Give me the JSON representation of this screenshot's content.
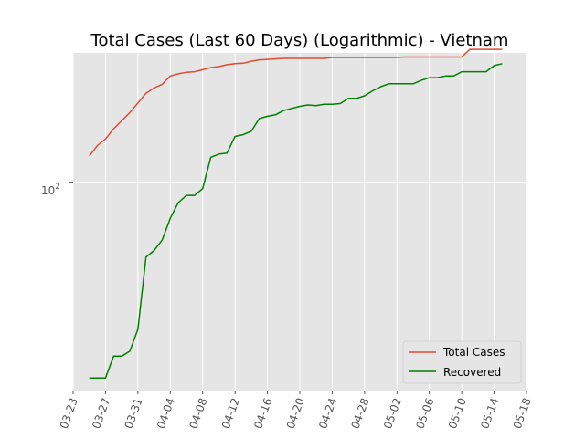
{
  "chart_data": {
    "type": "line",
    "title": "Total Cases (Last 60 Days) (Logarithmic) - Vietnam",
    "yscale": "log",
    "grid": true,
    "legend_position": "bottom-right",
    "x_ticks": [
      "03-23",
      "03-27",
      "03-31",
      "04-04",
      "04-08",
      "04-12",
      "04-16",
      "04-20",
      "04-24",
      "04-28",
      "05-02",
      "05-06",
      "05-10",
      "05-14",
      "05-18"
    ],
    "x_tick_dates": [
      "2020-03-23",
      "2020-03-27",
      "2020-03-31",
      "2020-04-04",
      "2020-04-08",
      "2020-04-12",
      "2020-04-16",
      "2020-04-20",
      "2020-04-24",
      "2020-04-28",
      "2020-05-02",
      "2020-05-06",
      "2020-05-10",
      "2020-05-14",
      "2020-05-18"
    ],
    "xlim": [
      "2020-03-23",
      "2020-05-18"
    ],
    "y_tick_label": "10",
    "y_tick_exp": "2",
    "y_tick_value": 100,
    "ylim": [
      19,
      280
    ],
    "x": [
      "2020-03-25",
      "2020-03-26",
      "2020-03-27",
      "2020-03-28",
      "2020-03-29",
      "2020-03-30",
      "2020-03-31",
      "2020-04-01",
      "2020-04-02",
      "2020-04-03",
      "2020-04-04",
      "2020-04-05",
      "2020-04-06",
      "2020-04-07",
      "2020-04-08",
      "2020-04-09",
      "2020-04-10",
      "2020-04-11",
      "2020-04-12",
      "2020-04-13",
      "2020-04-14",
      "2020-04-15",
      "2020-04-16",
      "2020-04-17",
      "2020-04-18",
      "2020-04-19",
      "2020-04-20",
      "2020-04-21",
      "2020-04-22",
      "2020-04-23",
      "2020-04-24",
      "2020-04-25",
      "2020-04-26",
      "2020-04-27",
      "2020-04-28",
      "2020-04-29",
      "2020-04-30",
      "2020-05-01",
      "2020-05-02",
      "2020-05-03",
      "2020-05-04",
      "2020-05-05",
      "2020-05-06",
      "2020-05-07",
      "2020-05-08",
      "2020-05-09",
      "2020-05-10",
      "2020-05-11",
      "2020-05-12",
      "2020-05-13",
      "2020-05-14",
      "2020-05-15"
    ],
    "series": [
      {
        "name": "Total Cases",
        "color": "#E24A33",
        "values": [
          123,
          134,
          141,
          153,
          163,
          174,
          188,
          203,
          212,
          218,
          233,
          237,
          240,
          241,
          245,
          249,
          251,
          255,
          257,
          258,
          262,
          265,
          266,
          267,
          268,
          268,
          268,
          268,
          268,
          268,
          270,
          270,
          270,
          270,
          270,
          270,
          270,
          270,
          270,
          271,
          271,
          271,
          271,
          271,
          271,
          271,
          271,
          288,
          288,
          288,
          288,
          288
        ]
      },
      {
        "name": "Recovered",
        "color": "#008000",
        "values": [
          21,
          21,
          21,
          25,
          25,
          26,
          31,
          55,
          58,
          63,
          75,
          85,
          90,
          90,
          95,
          122,
          125,
          126,
          144,
          146,
          150,
          166,
          169,
          171,
          177,
          180,
          183,
          185,
          184,
          186,
          186,
          187,
          195,
          195,
          199,
          207,
          214,
          219,
          219,
          219,
          219,
          225,
          230,
          230,
          233,
          233,
          241,
          241,
          241,
          241,
          253,
          257
        ]
      }
    ]
  }
}
